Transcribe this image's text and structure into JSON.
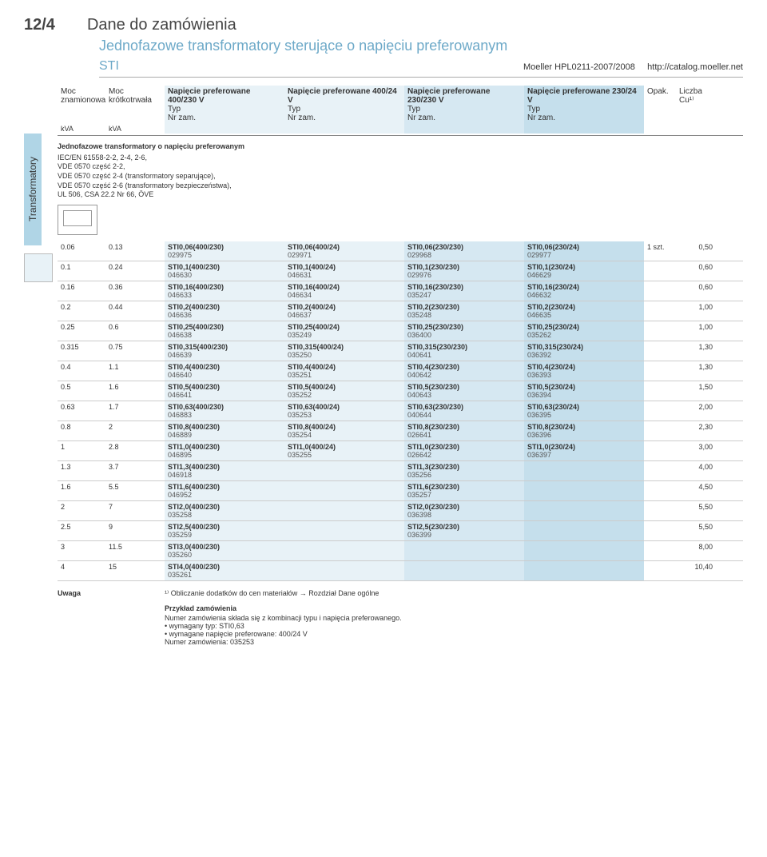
{
  "header": {
    "page_num": "12/4",
    "title": "Dane do zamówienia",
    "subtitle": "Jednofazowe transformatory sterujące o napięciu preferowanym",
    "sti": "STI",
    "catalog": "Moeller HPL0211-2007/2008",
    "url": "http://catalog.moeller.net"
  },
  "side_label": "Transformatory",
  "columns": {
    "moc_znam": "Moc\nznamionowa",
    "moc_krot": "Moc\nkrótkotrwała",
    "kva": "kVA",
    "v_headers": [
      "Napięcie preferowane 400/230 V",
      "Napięcie preferowane 400/24 V",
      "Napięcie preferowane 230/230 V",
      "Napięcie preferowane 230/24 V"
    ],
    "typ": "Typ",
    "nrzam": "Nr zam.",
    "opak": "Opak.",
    "liczba_cu": "Liczba\nCu¹⁾"
  },
  "spec": {
    "title": "Jednofazowe transformatory o napięciu preferowanym",
    "lines": [
      "IEC/EN 61558-2-2, 2-4, 2-6,",
      "VDE 0570 część 2-2,",
      "VDE 0570 część 2-4 (transformatory separujące),",
      "VDE 0570 część 2-6 (transformatory bezpieczeństwa),",
      "UL 506, CSA 22.2 Nr 66, ÖVE"
    ]
  },
  "rows": [
    {
      "moc": "0.06",
      "moc2": "0.13",
      "c": [
        [
          "STI0,06(400/230)",
          "029975"
        ],
        [
          "STI0,06(400/24)",
          "029971"
        ],
        [
          "STI0,06(230/230)",
          "029968"
        ],
        [
          "STI0,06(230/24)",
          "029977"
        ]
      ],
      "opak": "1 szt.",
      "cu": "0,50"
    },
    {
      "moc": "0.1",
      "moc2": "0.24",
      "c": [
        [
          "STI0,1(400/230)",
          "046630"
        ],
        [
          "STI0,1(400/24)",
          "046631"
        ],
        [
          "STI0,1(230/230)",
          "029976"
        ],
        [
          "STI0,1(230/24)",
          "046629"
        ]
      ],
      "opak": "",
      "cu": "0,60"
    },
    {
      "moc": "0.16",
      "moc2": "0.36",
      "c": [
        [
          "STI0,16(400/230)",
          "046633"
        ],
        [
          "STI0,16(400/24)",
          "046634"
        ],
        [
          "STI0,16(230/230)",
          "035247"
        ],
        [
          "STI0,16(230/24)",
          "046632"
        ]
      ],
      "opak": "",
      "cu": "0,60"
    },
    {
      "moc": "0.2",
      "moc2": "0.44",
      "c": [
        [
          "STI0,2(400/230)",
          "046636"
        ],
        [
          "STI0,2(400/24)",
          "046637"
        ],
        [
          "STI0,2(230/230)",
          "035248"
        ],
        [
          "STI0,2(230/24)",
          "046635"
        ]
      ],
      "opak": "",
      "cu": "1,00"
    },
    {
      "moc": "0.25",
      "moc2": "0.6",
      "c": [
        [
          "STI0,25(400/230)",
          "046638"
        ],
        [
          "STI0,25(400/24)",
          "035249"
        ],
        [
          "STI0,25(230/230)",
          "036400"
        ],
        [
          "STI0,25(230/24)",
          "035262"
        ]
      ],
      "opak": "",
      "cu": "1,00"
    },
    {
      "moc": "0.315",
      "moc2": "0.75",
      "c": [
        [
          "STI0,315(400/230)",
          "046639"
        ],
        [
          "STI0,315(400/24)",
          "035250"
        ],
        [
          "STI0,315(230/230)",
          "040641"
        ],
        [
          "STI0,315(230/24)",
          "036392"
        ]
      ],
      "opak": "",
      "cu": "1,30"
    },
    {
      "moc": "0.4",
      "moc2": "1.1",
      "c": [
        [
          "STI0,4(400/230)",
          "046640"
        ],
        [
          "STI0,4(400/24)",
          "035251"
        ],
        [
          "STI0,4(230/230)",
          "040642"
        ],
        [
          "STI0,4(230/24)",
          "036393"
        ]
      ],
      "opak": "",
      "cu": "1,30"
    },
    {
      "moc": "0.5",
      "moc2": "1.6",
      "c": [
        [
          "STI0,5(400/230)",
          "046641"
        ],
        [
          "STI0,5(400/24)",
          "035252"
        ],
        [
          "STI0,5(230/230)",
          "040643"
        ],
        [
          "STI0,5(230/24)",
          "036394"
        ]
      ],
      "opak": "",
      "cu": "1,50"
    },
    {
      "moc": "0.63",
      "moc2": "1.7",
      "c": [
        [
          "STI0,63(400/230)",
          "046883"
        ],
        [
          "STI0,63(400/24)",
          "035253"
        ],
        [
          "STI0,63(230/230)",
          "040644"
        ],
        [
          "STI0,63(230/24)",
          "036395"
        ]
      ],
      "opak": "",
      "cu": "2,00"
    },
    {
      "moc": "0.8",
      "moc2": "2",
      "c": [
        [
          "STI0,8(400/230)",
          "046889"
        ],
        [
          "STI0,8(400/24)",
          "035254"
        ],
        [
          "STI0,8(230/230)",
          "026641"
        ],
        [
          "STI0,8(230/24)",
          "036396"
        ]
      ],
      "opak": "",
      "cu": "2,30"
    },
    {
      "moc": "1",
      "moc2": "2.8",
      "c": [
        [
          "STI1,0(400/230)",
          "046895"
        ],
        [
          "STI1,0(400/24)",
          "035255"
        ],
        [
          "STI1,0(230/230)",
          "026642"
        ],
        [
          "STI1,0(230/24)",
          "036397"
        ]
      ],
      "opak": "",
      "cu": "3,00"
    },
    {
      "moc": "1.3",
      "moc2": "3.7",
      "c": [
        [
          "STI1,3(400/230)",
          "046918"
        ],
        [
          "",
          ""
        ],
        [
          "STI1,3(230/230)",
          "035256"
        ],
        [
          "",
          ""
        ]
      ],
      "opak": "",
      "cu": "4,00"
    },
    {
      "moc": "1.6",
      "moc2": "5.5",
      "c": [
        [
          "STI1,6(400/230)",
          "046952"
        ],
        [
          "",
          ""
        ],
        [
          "STI1,6(230/230)",
          "035257"
        ],
        [
          "",
          ""
        ]
      ],
      "opak": "",
      "cu": "4,50"
    },
    {
      "moc": "2",
      "moc2": "7",
      "c": [
        [
          "STI2,0(400/230)",
          "035258"
        ],
        [
          "",
          ""
        ],
        [
          "STI2,0(230/230)",
          "036398"
        ],
        [
          "",
          ""
        ]
      ],
      "opak": "",
      "cu": "5,50"
    },
    {
      "moc": "2.5",
      "moc2": "9",
      "c": [
        [
          "STI2,5(400/230)",
          "035259"
        ],
        [
          "",
          ""
        ],
        [
          "STI2,5(230/230)",
          "036399"
        ],
        [
          "",
          ""
        ]
      ],
      "opak": "",
      "cu": "5,50"
    },
    {
      "moc": "3",
      "moc2": "11.5",
      "c": [
        [
          "STI3,0(400/230)",
          "035260"
        ],
        [
          "",
          ""
        ],
        [
          "",
          ""
        ],
        [
          "",
          ""
        ]
      ],
      "opak": "",
      "cu": "8,00"
    },
    {
      "moc": "4",
      "moc2": "15",
      "c": [
        [
          "STI4,0(400/230)",
          "035261"
        ],
        [
          "",
          ""
        ],
        [
          "",
          ""
        ],
        [
          "",
          ""
        ]
      ],
      "opak": "",
      "cu": "10,40"
    }
  ],
  "footer": {
    "uwaga_label": "Uwaga",
    "note1": "¹⁾ Obliczanie dodatków do cen materiałów → Rozdział Dane ogólne",
    "example_title": "Przykład zamówienia",
    "example_text": "Numer zamówienia składa się z kombinacji typu i napięcia preferowanego.",
    "bullets": [
      "wymagany typ: STI0,63",
      "wymagane napięcie preferowane: 400/24 V"
    ],
    "order_num": "Numer zamówienia: 035253"
  }
}
